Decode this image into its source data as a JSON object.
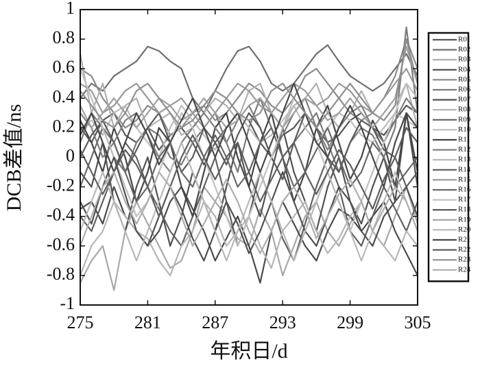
{
  "chart_data": {
    "type": "line",
    "x_label": "年积日/d",
    "y_label": "DCB差值/ns",
    "x": [
      275,
      276,
      277,
      278,
      279,
      280,
      281,
      282,
      283,
      284,
      285,
      286,
      287,
      288,
      289,
      290,
      291,
      292,
      293,
      294,
      295,
      296,
      297,
      298,
      299,
      300,
      301,
      302,
      303,
      304,
      305
    ],
    "xlim": [
      275,
      305
    ],
    "xticks": [
      275,
      281,
      287,
      293,
      299,
      305
    ],
    "ylim": [
      -1,
      1
    ],
    "yticks": [
      -1,
      -0.8,
      -0.6,
      -0.4,
      -0.2,
      0,
      0.2,
      0.4,
      0.6,
      0.8,
      1
    ],
    "legend": "right-outside",
    "series": [
      {
        "name": "R01",
        "color": "#555555",
        "values": [
          0.2,
          0.1,
          0.25,
          0.3,
          0.15,
          0.1,
          0.2,
          0.05,
          0.15,
          0.2,
          0.1,
          -0.05,
          0.1,
          0.2,
          0.3,
          0.25,
          0.1,
          0.0,
          0.15,
          0.2,
          0.3,
          0.2,
          0.1,
          0.15,
          0.25,
          0.3,
          0.2,
          0.15,
          0.25,
          0.35,
          0.3
        ]
      },
      {
        "name": "R02",
        "color": "#6e6e6e",
        "values": [
          0.4,
          0.5,
          0.45,
          0.55,
          0.6,
          0.65,
          0.75,
          0.72,
          0.65,
          0.6,
          0.4,
          0.3,
          0.45,
          0.6,
          0.72,
          0.75,
          0.65,
          0.5,
          0.45,
          0.5,
          0.6,
          0.7,
          0.76,
          0.65,
          0.55,
          0.5,
          0.45,
          0.5,
          0.6,
          0.7,
          0.55
        ]
      },
      {
        "name": "R03",
        "color": "#a8a8a8",
        "values": [
          -0.85,
          -0.7,
          -0.6,
          -0.9,
          -0.5,
          -0.3,
          -0.45,
          -0.6,
          -0.75,
          -0.7,
          -0.5,
          -0.2,
          -0.3,
          -0.4,
          -0.55,
          -0.6,
          -0.35,
          -0.5,
          -0.8,
          -0.6,
          -0.4,
          -0.3,
          -0.5,
          -0.6,
          -0.45,
          -0.3,
          -0.5,
          -0.6,
          -0.4,
          -0.2,
          -0.45
        ]
      },
      {
        "name": "R04",
        "color": "#4a4a4a",
        "values": [
          -0.35,
          -0.3,
          -0.45,
          -0.2,
          -0.4,
          -0.5,
          -0.6,
          -0.5,
          -0.3,
          -0.2,
          -0.35,
          -0.5,
          -0.7,
          -0.55,
          -0.4,
          -0.6,
          -0.85,
          -0.5,
          -0.3,
          -0.45,
          -0.6,
          -0.7,
          -0.5,
          -0.35,
          -0.4,
          -0.5,
          -0.4,
          -0.3,
          -0.5,
          -0.65,
          -0.8
        ]
      },
      {
        "name": "R05",
        "color": "#8a8a8a",
        "values": [
          0.6,
          0.55,
          0.4,
          0.3,
          0.2,
          0.25,
          0.35,
          0.3,
          0.15,
          0.2,
          0.3,
          0.35,
          0.25,
          0.3,
          0.4,
          0.5,
          0.45,
          0.35,
          0.3,
          0.4,
          0.55,
          0.6,
          0.5,
          0.4,
          0.3,
          0.25,
          0.3,
          0.4,
          0.55,
          0.8,
          0.6
        ]
      },
      {
        "name": "R06",
        "color": "#7a7a7a",
        "values": [
          0.1,
          0.3,
          0.2,
          0.0,
          -0.1,
          0.1,
          0.2,
          0.15,
          0.0,
          -0.05,
          0.1,
          0.2,
          0.3,
          0.1,
          -0.1,
          0.2,
          0.4,
          0.2,
          0.0,
          0.1,
          0.2,
          0.3,
          0.1,
          -0.1,
          0.1,
          0.2,
          0.15,
          0.0,
          0.2,
          0.88,
          0.3
        ]
      },
      {
        "name": "R07",
        "color": "#505050",
        "values": [
          -0.1,
          -0.2,
          0.1,
          -0.3,
          -0.5,
          -0.2,
          0.0,
          -0.3,
          -0.6,
          -0.4,
          -0.1,
          -0.3,
          -0.5,
          -0.2,
          0.1,
          -0.2,
          -0.4,
          -0.1,
          0.2,
          -0.1,
          -0.3,
          -0.5,
          -0.2,
          0.0,
          -0.3,
          -0.45,
          -0.2,
          0.0,
          -0.3,
          0.3,
          -0.2
        ]
      },
      {
        "name": "R08",
        "color": "#b0b0b0",
        "values": [
          0.7,
          0.3,
          0.5,
          0.2,
          0.35,
          0.4,
          0.2,
          0.25,
          0.3,
          0.15,
          0.2,
          0.3,
          0.4,
          0.35,
          0.25,
          0.45,
          0.5,
          0.3,
          0.2,
          0.35,
          0.4,
          0.5,
          0.3,
          0.2,
          0.3,
          0.45,
          0.3,
          0.25,
          0.35,
          0.5,
          0.2
        ]
      },
      {
        "name": "R09",
        "color": "#606060",
        "values": [
          -0.4,
          -0.5,
          -0.3,
          -0.1,
          0.1,
          0.0,
          -0.2,
          -0.35,
          -0.5,
          -0.6,
          -0.4,
          -0.2,
          0.0,
          -0.3,
          -0.6,
          -0.4,
          -0.1,
          -0.3,
          -0.55,
          -0.7,
          -0.45,
          -0.2,
          0.0,
          -0.2,
          -0.5,
          -0.6,
          -0.4,
          -0.2,
          -0.35,
          -0.5,
          -0.3
        ]
      },
      {
        "name": "R10",
        "color": "#bdbdbd",
        "values": [
          0.2,
          0.25,
          0.15,
          0.3,
          0.35,
          0.2,
          0.1,
          0.0,
          0.2,
          0.35,
          0.25,
          0.15,
          0.05,
          0.2,
          0.3,
          0.2,
          0.1,
          0.15,
          0.25,
          0.35,
          0.2,
          0.1,
          0.2,
          0.3,
          0.25,
          0.15,
          0.1,
          0.2,
          0.3,
          0.25,
          0.2
        ]
      },
      {
        "name": "R11",
        "color": "#444444",
        "values": [
          0.25,
          0.1,
          -0.1,
          0.2,
          0.0,
          -0.3,
          -0.1,
          0.2,
          0.1,
          -0.2,
          -0.4,
          -0.1,
          0.2,
          0.3,
          0.0,
          -0.2,
          0.1,
          0.3,
          0.0,
          -0.3,
          -0.1,
          0.2,
          0.35,
          0.1,
          -0.15,
          0.0,
          0.25,
          0.1,
          -0.2,
          0.3,
          -0.1
        ]
      },
      {
        "name": "R12",
        "color": "#7f7f7f",
        "values": [
          0.3,
          0.2,
          0.0,
          0.1,
          0.25,
          0.3,
          0.15,
          0.0,
          -0.1,
          0.1,
          0.2,
          0.3,
          0.2,
          0.1,
          0.25,
          0.35,
          0.2,
          0.0,
          0.15,
          0.3,
          0.4,
          0.2,
          0.05,
          0.2,
          0.3,
          0.35,
          0.2,
          0.1,
          0.25,
          0.4,
          0.3
        ]
      },
      {
        "name": "R13",
        "color": "#b5b5b5",
        "values": [
          -0.8,
          -0.6,
          -0.5,
          -0.3,
          -0.4,
          -0.5,
          -0.55,
          -0.7,
          -0.8,
          -0.6,
          -0.5,
          -0.3,
          -0.4,
          -0.6,
          -0.5,
          -0.4,
          -0.6,
          -0.75,
          -0.5,
          -0.4,
          -0.3,
          -0.5,
          -0.65,
          -0.55,
          -0.4,
          -0.3,
          -0.5,
          -0.6,
          -0.7,
          -0.5,
          -0.6
        ]
      },
      {
        "name": "R14",
        "color": "#5a5a5a",
        "values": [
          0.0,
          0.15,
          0.25,
          0.1,
          -0.1,
          0.05,
          0.2,
          0.3,
          0.1,
          -0.1,
          0.0,
          0.2,
          0.1,
          -0.05,
          0.15,
          0.3,
          0.2,
          0.0,
          -0.15,
          0.1,
          0.3,
          0.2,
          0.0,
          -0.1,
          0.1,
          0.25,
          0.2,
          0.05,
          0.0,
          0.2,
          0.1
        ]
      },
      {
        "name": "R15",
        "color": "#999999",
        "values": [
          0.5,
          0.45,
          0.3,
          0.35,
          0.45,
          0.5,
          0.4,
          0.3,
          0.35,
          0.4,
          0.3,
          0.2,
          0.3,
          0.4,
          0.5,
          0.45,
          0.35,
          0.3,
          0.4,
          0.5,
          0.45,
          0.35,
          0.4,
          0.5,
          0.45,
          0.35,
          0.3,
          0.4,
          0.5,
          0.6,
          0.45
        ]
      },
      {
        "name": "R16",
        "color": "#686868",
        "values": [
          -0.2,
          0.0,
          0.2,
          0.1,
          -0.1,
          -0.3,
          -0.2,
          0.0,
          0.1,
          -0.1,
          -0.2,
          0.0,
          0.15,
          0.0,
          -0.2,
          -0.1,
          0.1,
          0.2,
          0.0,
          -0.2,
          -0.1,
          0.05,
          0.2,
          0.0,
          -0.2,
          -0.1,
          0.1,
          0.0,
          -0.2,
          -0.1,
          0.0
        ]
      },
      {
        "name": "R17",
        "color": "#c0c0c0",
        "values": [
          0.6,
          0.4,
          0.2,
          0.0,
          -0.2,
          -0.4,
          -0.3,
          -0.1,
          0.1,
          0.3,
          0.2,
          0.0,
          -0.2,
          -0.4,
          -0.6,
          -0.4,
          -0.2,
          0.0,
          0.2,
          0.4,
          0.3,
          0.1,
          -0.1,
          -0.3,
          -0.5,
          -0.3,
          -0.1,
          0.1,
          0.3,
          0.5,
          0.4
        ]
      },
      {
        "name": "R18",
        "color": "#4f4f4f",
        "values": [
          -0.3,
          -0.45,
          -0.2,
          0.0,
          -0.25,
          -0.5,
          -0.6,
          -0.4,
          -0.2,
          -0.35,
          -0.55,
          -0.7,
          -0.5,
          -0.3,
          -0.45,
          -0.65,
          -0.5,
          -0.3,
          -0.1,
          -0.3,
          -0.5,
          -0.6,
          -0.4,
          -0.2,
          -0.3,
          -0.5,
          -0.6,
          -0.4,
          -0.3,
          -0.2,
          -0.4
        ]
      },
      {
        "name": "R19",
        "color": "#a0a0a0",
        "values": [
          0.35,
          0.2,
          0.3,
          0.4,
          0.3,
          0.2,
          0.3,
          0.4,
          0.35,
          0.25,
          0.3,
          0.4,
          0.3,
          0.2,
          0.25,
          0.35,
          0.4,
          0.3,
          0.2,
          0.3,
          0.4,
          0.35,
          0.25,
          0.3,
          0.4,
          0.3,
          0.2,
          0.3,
          0.4,
          0.75,
          0.5
        ]
      },
      {
        "name": "R20",
        "color": "#b8b8b8",
        "values": [
          -0.5,
          -0.3,
          -0.1,
          -0.3,
          -0.5,
          -0.7,
          -0.5,
          -0.3,
          -0.1,
          0.1,
          -0.1,
          -0.3,
          -0.5,
          -0.7,
          -0.5,
          -0.3,
          -0.1,
          -0.3,
          -0.5,
          -0.7,
          -0.5,
          -0.3,
          -0.1,
          -0.3,
          -0.5,
          -0.7,
          -0.5,
          -0.3,
          -0.1,
          -0.3,
          -0.5
        ]
      },
      {
        "name": "R21",
        "color": "#484848",
        "values": [
          0.15,
          0.3,
          0.1,
          -0.1,
          0.1,
          0.3,
          0.15,
          -0.05,
          0.1,
          0.25,
          0.4,
          0.2,
          0.0,
          0.2,
          0.3,
          0.1,
          -0.1,
          0.1,
          0.3,
          0.5,
          0.3,
          0.1,
          0.0,
          0.2,
          0.35,
          0.2,
          0.0,
          -0.2,
          0.1,
          0.3,
          0.2
        ]
      },
      {
        "name": "R22",
        "color": "#5e5e5e",
        "values": [
          0.05,
          -0.1,
          -0.25,
          -0.1,
          0.05,
          -0.05,
          -0.2,
          -0.4,
          -0.2,
          0.0,
          0.15,
          0.0,
          -0.15,
          0.0,
          0.1,
          -0.1,
          -0.3,
          -0.15,
          0.0,
          0.1,
          -0.1,
          -0.25,
          -0.1,
          0.05,
          -0.05,
          -0.2,
          -0.35,
          -0.15,
          0.0,
          -0.2,
          -0.1
        ]
      },
      {
        "name": "R23",
        "color": "#8f8f8f",
        "values": [
          0.45,
          0.35,
          0.25,
          0.2,
          0.3,
          0.45,
          0.5,
          0.4,
          0.3,
          0.2,
          0.25,
          0.35,
          0.45,
          0.4,
          0.3,
          0.25,
          0.3,
          0.45,
          0.5,
          0.4,
          0.3,
          0.2,
          0.3,
          0.4,
          0.5,
          0.4,
          0.3,
          0.25,
          0.35,
          0.8,
          0.5
        ]
      },
      {
        "name": "R24",
        "color": "#adadad",
        "values": [
          -0.6,
          -0.4,
          -0.2,
          -0.1,
          -0.3,
          -0.45,
          -0.3,
          -0.1,
          -0.2,
          -0.4,
          -0.6,
          -0.45,
          -0.3,
          -0.15,
          -0.3,
          -0.5,
          -0.65,
          -0.5,
          -0.3,
          -0.2,
          -0.35,
          -0.55,
          -0.4,
          -0.25,
          -0.15,
          -0.3,
          -0.5,
          -0.35,
          -0.2,
          -0.3,
          -0.5
        ]
      }
    ]
  }
}
